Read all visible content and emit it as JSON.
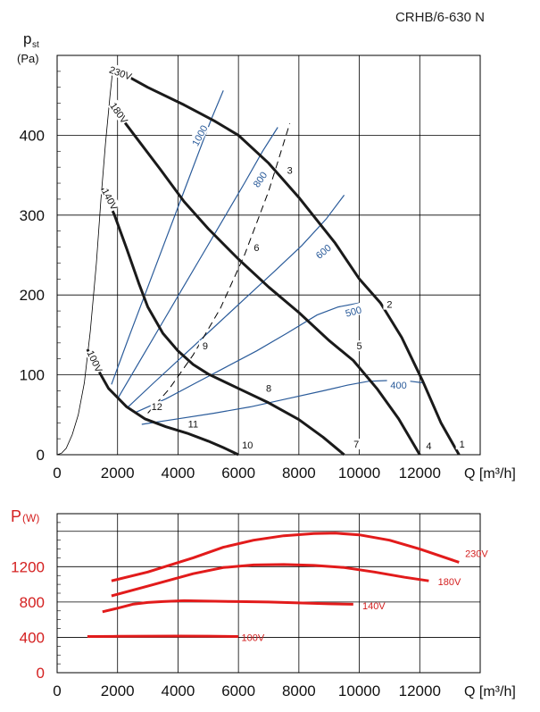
{
  "title": "CRHB/6-630 N",
  "chart_data": [
    {
      "type": "line",
      "name": "pressure-flow",
      "ylabel_main": "p",
      "ylabel_sub": "st",
      "ylabel_unit": "(Pa)",
      "xlabel": "Q [m³/h]",
      "xlim": [
        0,
        14000
      ],
      "ylim": [
        0,
        500
      ],
      "xticks": [
        0,
        2000,
        4000,
        6000,
        8000,
        10000,
        12000
      ],
      "yticks": [
        0,
        100,
        200,
        300,
        400
      ],
      "grid": true,
      "series": [
        {
          "name": "230V",
          "x": [
            1800,
            3000,
            4200,
            5200,
            6000,
            7000,
            8000,
            9200,
            10000,
            10700,
            11400,
            12100,
            12700,
            13300
          ],
          "y": [
            485,
            460,
            438,
            418,
            400,
            365,
            322,
            265,
            220,
            190,
            147,
            92,
            40,
            0
          ]
        },
        {
          "name": "180V",
          "x": [
            1800,
            2600,
            3400,
            4200,
            5000,
            6000,
            7000,
            8000,
            9000,
            9800,
            10600,
            11300,
            12000
          ],
          "y": [
            438,
            398,
            358,
            317,
            283,
            245,
            210,
            178,
            143,
            118,
            82,
            45,
            0
          ]
        },
        {
          "name": "140V",
          "x": [
            1500,
            1900,
            2300,
            2700,
            3000,
            3500,
            4000,
            4500,
            5000,
            6000,
            7000,
            8000,
            8800,
            9500
          ],
          "y": [
            333,
            300,
            258,
            215,
            185,
            152,
            130,
            113,
            101,
            83,
            65,
            44,
            22,
            0
          ]
        },
        {
          "name": "100V",
          "x": [
            1000,
            1300,
            1700,
            2300,
            2900,
            3600,
            4300,
            5000,
            5500,
            6000
          ],
          "y": [
            132,
            110,
            83,
            60,
            45,
            35,
            27,
            17,
            9,
            0
          ]
        },
        {
          "name": "system-curve",
          "x": [
            0,
            150,
            300,
            500,
            700,
            900,
            1100,
            1300,
            1450,
            1600,
            1750,
            1850
          ],
          "y": [
            0,
            2,
            8,
            25,
            50,
            90,
            155,
            240,
            320,
            390,
            450,
            485
          ]
        }
      ],
      "iso_rpm_lines": [
        {
          "label": "1000",
          "x": [
            1800,
            2400,
            3000,
            3600,
            4200,
            4650,
            5100,
            5500
          ],
          "y": [
            88,
            150,
            210,
            270,
            330,
            375,
            420,
            456
          ]
        },
        {
          "label": "800",
          "x": [
            2000,
            2700,
            3400,
            4100,
            4800,
            5500,
            6200,
            6800,
            7300
          ],
          "y": [
            70,
            115,
            160,
            205,
            250,
            295,
            340,
            380,
            410
          ]
        },
        {
          "label": "600",
          "x": [
            2300,
            3200,
            4200,
            5200,
            6200,
            7200,
            8100,
            8900,
            9500
          ],
          "y": [
            58,
            90,
            125,
            160,
            195,
            230,
            262,
            295,
            325
          ]
        },
        {
          "label": "500",
          "x": [
            2600,
            3600,
            4600,
            5600,
            6600,
            7600,
            8600,
            9300,
            10000
          ],
          "y": [
            53,
            70,
            90,
            110,
            130,
            152,
            175,
            185,
            190
          ]
        },
        {
          "label": "400",
          "x": [
            2800,
            4000,
            5200,
            6400,
            7600,
            8800,
            9600,
            10300,
            11000,
            11700,
            12100
          ],
          "y": [
            38,
            45,
            52,
            60,
            70,
            80,
            87,
            92,
            93,
            92,
            90
          ]
        }
      ],
      "operating_line": {
        "x": [
          3000,
          3700,
          4500,
          5400,
          6200,
          7000,
          7700
        ],
        "y": [
          52,
          82,
          125,
          183,
          250,
          330,
          415
        ]
      },
      "point_labels": [
        {
          "label": "1",
          "x": 13400,
          "y": 10
        },
        {
          "label": "2",
          "x": 11000,
          "y": 185
        },
        {
          "label": "3",
          "x": 7700,
          "y": 353
        },
        {
          "label": "4",
          "x": 12300,
          "y": 8
        },
        {
          "label": "5",
          "x": 10000,
          "y": 133
        },
        {
          "label": "6",
          "x": 6600,
          "y": 256
        },
        {
          "label": "7",
          "x": 9900,
          "y": 10
        },
        {
          "label": "8",
          "x": 7000,
          "y": 80
        },
        {
          "label": "9",
          "x": 4900,
          "y": 133
        },
        {
          "label": "10",
          "x": 6300,
          "y": 9
        },
        {
          "label": "11",
          "x": 4500,
          "y": 35
        },
        {
          "label": "12",
          "x": 3300,
          "y": 57
        }
      ]
    },
    {
      "type": "line",
      "name": "power",
      "ylabel_main": "P",
      "ylabel_sub": "(W)",
      "xlabel": "Q [m³/h]",
      "xlim": [
        0,
        14000
      ],
      "ylim": [
        0,
        1800
      ],
      "xticks": [
        0,
        2000,
        4000,
        6000,
        8000,
        10000,
        12000
      ],
      "yticks": [
        0,
        400,
        800,
        1200
      ],
      "grid": true,
      "series": [
        {
          "name": "230V",
          "x": [
            1800,
            3000,
            4500,
            5500,
            6500,
            7500,
            8500,
            9200,
            10000,
            11000,
            12000,
            13300
          ],
          "y": [
            1040,
            1140,
            1300,
            1420,
            1500,
            1550,
            1575,
            1580,
            1560,
            1500,
            1400,
            1250
          ]
        },
        {
          "name": "180V",
          "x": [
            1800,
            3000,
            4500,
            5500,
            6500,
            7500,
            8500,
            9500,
            10500,
            11500,
            12300
          ],
          "y": [
            870,
            980,
            1120,
            1190,
            1220,
            1225,
            1215,
            1190,
            1140,
            1080,
            1040
          ]
        },
        {
          "name": "140V",
          "x": [
            1500,
            2000,
            2500,
            3000,
            3500,
            4200,
            5000,
            6000,
            7000,
            8000,
            9000,
            9800
          ],
          "y": [
            690,
            730,
            775,
            795,
            805,
            815,
            810,
            805,
            800,
            790,
            780,
            775
          ]
        },
        {
          "name": "100V",
          "x": [
            1000,
            2000,
            3000,
            4000,
            5000,
            6000
          ],
          "y": [
            410,
            412,
            414,
            415,
            414,
            410
          ]
        }
      ]
    }
  ]
}
